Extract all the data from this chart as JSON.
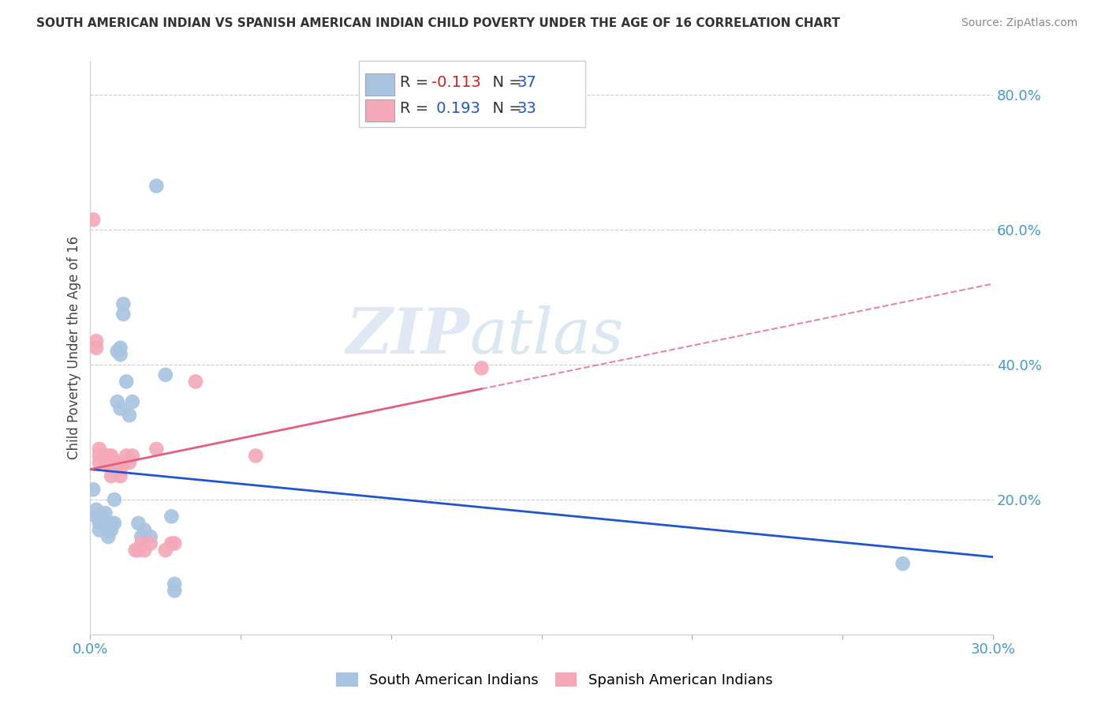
{
  "title": "SOUTH AMERICAN INDIAN VS SPANISH AMERICAN INDIAN CHILD POVERTY UNDER THE AGE OF 16 CORRELATION CHART",
  "source": "Source: ZipAtlas.com",
  "ylabel": "Child Poverty Under the Age of 16",
  "xlim": [
    0.0,
    0.3
  ],
  "ylim": [
    0.0,
    0.85
  ],
  "xticks": [
    0.0,
    0.05,
    0.1,
    0.15,
    0.2,
    0.25,
    0.3
  ],
  "xticklabels": [
    "0.0%",
    "",
    "",
    "",
    "",
    "",
    "30.0%"
  ],
  "yticks_right": [
    0.2,
    0.4,
    0.6,
    0.8
  ],
  "ytick_right_labels": [
    "20.0%",
    "40.0%",
    "60.0%",
    "80.0%"
  ],
  "blue_color": "#a8c4e0",
  "pink_color": "#f4a8b8",
  "blue_line_color": "#2255cc",
  "pink_line_color": "#e06080",
  "watermark_zip": "ZIP",
  "watermark_atlas": "atlas",
  "south_american_x": [
    0.001,
    0.002,
    0.002,
    0.003,
    0.003,
    0.003,
    0.004,
    0.004,
    0.005,
    0.005,
    0.006,
    0.006,
    0.006,
    0.007,
    0.007,
    0.008,
    0.008,
    0.009,
    0.009,
    0.01,
    0.01,
    0.01,
    0.011,
    0.011,
    0.012,
    0.013,
    0.014,
    0.016,
    0.017,
    0.018,
    0.02,
    0.022,
    0.025,
    0.027,
    0.028,
    0.028,
    0.27
  ],
  "south_american_y": [
    0.215,
    0.185,
    0.175,
    0.175,
    0.165,
    0.155,
    0.175,
    0.165,
    0.18,
    0.165,
    0.155,
    0.165,
    0.145,
    0.165,
    0.155,
    0.2,
    0.165,
    0.345,
    0.42,
    0.425,
    0.415,
    0.335,
    0.49,
    0.475,
    0.375,
    0.325,
    0.345,
    0.165,
    0.145,
    0.155,
    0.145,
    0.665,
    0.385,
    0.175,
    0.075,
    0.065,
    0.105
  ],
  "spanish_american_x": [
    0.001,
    0.002,
    0.002,
    0.003,
    0.003,
    0.003,
    0.004,
    0.005,
    0.005,
    0.006,
    0.006,
    0.007,
    0.007,
    0.008,
    0.009,
    0.01,
    0.01,
    0.011,
    0.012,
    0.013,
    0.014,
    0.015,
    0.016,
    0.017,
    0.018,
    0.02,
    0.022,
    0.025,
    0.027,
    0.028,
    0.035,
    0.055,
    0.13
  ],
  "spanish_american_y": [
    0.615,
    0.435,
    0.425,
    0.265,
    0.275,
    0.255,
    0.265,
    0.265,
    0.255,
    0.265,
    0.255,
    0.265,
    0.235,
    0.245,
    0.255,
    0.235,
    0.245,
    0.255,
    0.265,
    0.255,
    0.265,
    0.125,
    0.125,
    0.135,
    0.125,
    0.135,
    0.275,
    0.125,
    0.135,
    0.135,
    0.375,
    0.265,
    0.395
  ],
  "blue_trend_x0": 0.0,
  "blue_trend_y0": 0.245,
  "blue_trend_x1": 0.3,
  "blue_trend_y1": 0.115,
  "pink_trend_x0": 0.0,
  "pink_trend_y0": 0.245,
  "pink_trend_x1": 0.3,
  "pink_trend_y1": 0.52
}
